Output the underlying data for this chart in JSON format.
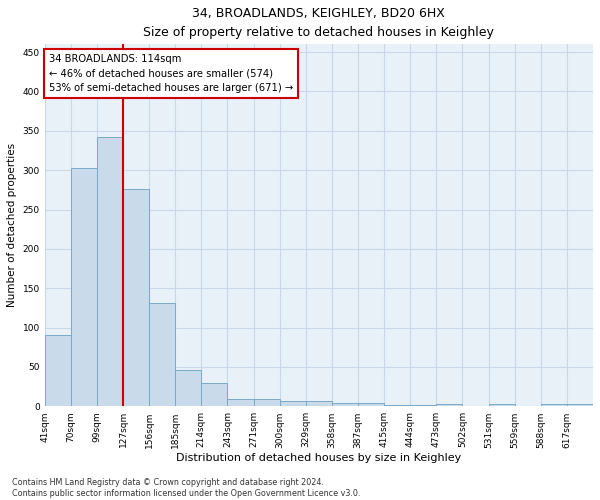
{
  "title": "34, BROADLANDS, KEIGHLEY, BD20 6HX",
  "subtitle": "Size of property relative to detached houses in Keighley",
  "xlabel": "Distribution of detached houses by size in Keighley",
  "ylabel": "Number of detached properties",
  "categories": [
    "41sqm",
    "70sqm",
    "99sqm",
    "127sqm",
    "156sqm",
    "185sqm",
    "214sqm",
    "243sqm",
    "271sqm",
    "300sqm",
    "329sqm",
    "358sqm",
    "387sqm",
    "415sqm",
    "444sqm",
    "473sqm",
    "502sqm",
    "531sqm",
    "559sqm",
    "588sqm",
    "617sqm"
  ],
  "values": [
    91,
    303,
    342,
    276,
    131,
    46,
    30,
    9,
    9,
    7,
    7,
    4,
    4,
    2,
    2,
    3,
    0,
    3,
    0,
    3,
    3
  ],
  "bar_color": "#c9daea",
  "bar_edge_color": "#7aaac8",
  "marker_line_color": "#cc0000",
  "annotation_text": "34 BROADLANDS: 114sqm\n← 46% of detached houses are smaller (574)\n53% of semi-detached houses are larger (671) →",
  "annotation_box_color": "#ffffff",
  "annotation_box_edge": "#cc0000",
  "footer": "Contains HM Land Registry data © Crown copyright and database right 2024.\nContains public sector information licensed under the Open Government Licence v3.0.",
  "ylim": [
    0,
    460
  ],
  "yticks": [
    0,
    50,
    100,
    150,
    200,
    250,
    300,
    350,
    400,
    450
  ],
  "grid_color": "#c8d8e8",
  "background_color": "#e8f0f8"
}
